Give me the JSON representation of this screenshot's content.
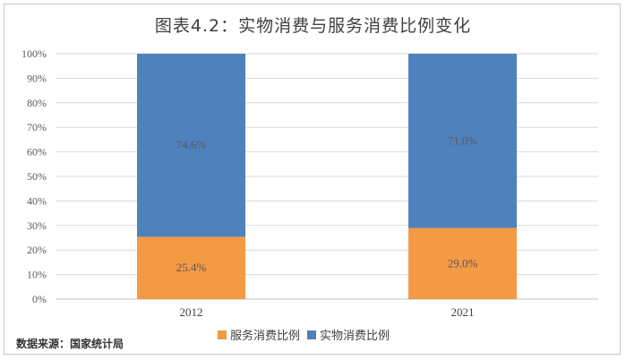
{
  "chart_data": {
    "type": "bar",
    "stacked": true,
    "title": "图表4.2：实物消费与服务消费比例变化",
    "categories": [
      "2012",
      "2021"
    ],
    "series": [
      {
        "name": "服务消费比例",
        "values": [
          25.4,
          29.0
        ],
        "labels": [
          "25.4%",
          "29.0%"
        ],
        "color": "#F39A45"
      },
      {
        "name": "实物消费比例",
        "values": [
          74.6,
          71.0
        ],
        "labels": [
          "74.6%",
          "71.0%"
        ],
        "color": "#4F81BD"
      }
    ],
    "ylim": [
      0,
      100
    ],
    "yticks": [
      "0%",
      "10%",
      "20%",
      "30%",
      "40%",
      "50%",
      "60%",
      "70%",
      "80%",
      "90%",
      "100%"
    ],
    "grid": true,
    "legend_position": "bottom"
  },
  "source_note": "数据来源：国家统计局"
}
